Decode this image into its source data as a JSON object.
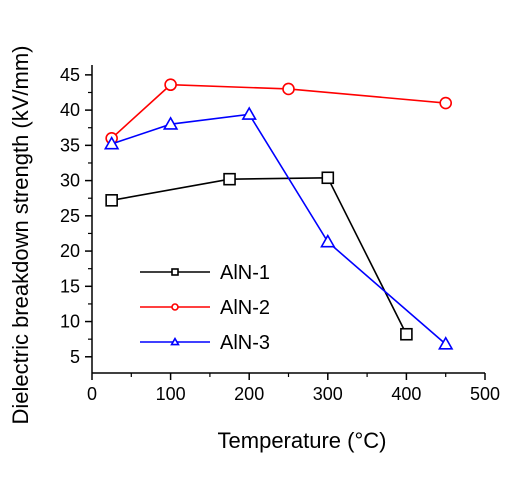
{
  "chart_data": {
    "type": "line",
    "title": "",
    "xlabel": "Temperature (°C)",
    "ylabel": "Dielectric breakdown strength (kV/mm)",
    "xlim": [
      0,
      500
    ],
    "ylim": [
      5,
      45
    ],
    "x_ticks": [
      0,
      100,
      200,
      300,
      400,
      500
    ],
    "y_ticks": [
      5,
      10,
      15,
      20,
      25,
      30,
      35,
      40,
      45
    ],
    "grid": false,
    "legend_position": "lower-left",
    "series": [
      {
        "name": "AlN-1",
        "color": "#000000",
        "marker": "square",
        "x": [
          25,
          175,
          300,
          400
        ],
        "y": [
          27.2,
          30.2,
          30.4,
          8.2
        ]
      },
      {
        "name": "AlN-2",
        "color": "#ff0000",
        "marker": "circle",
        "x": [
          25,
          100,
          250,
          450
        ],
        "y": [
          36.0,
          43.6,
          43.0,
          41.0
        ]
      },
      {
        "name": "AlN-3",
        "color": "#0000ff",
        "marker": "triangle",
        "x": [
          25,
          100,
          200,
          300,
          450
        ],
        "y": [
          35.2,
          38.0,
          39.4,
          21.3,
          6.8
        ]
      }
    ]
  }
}
